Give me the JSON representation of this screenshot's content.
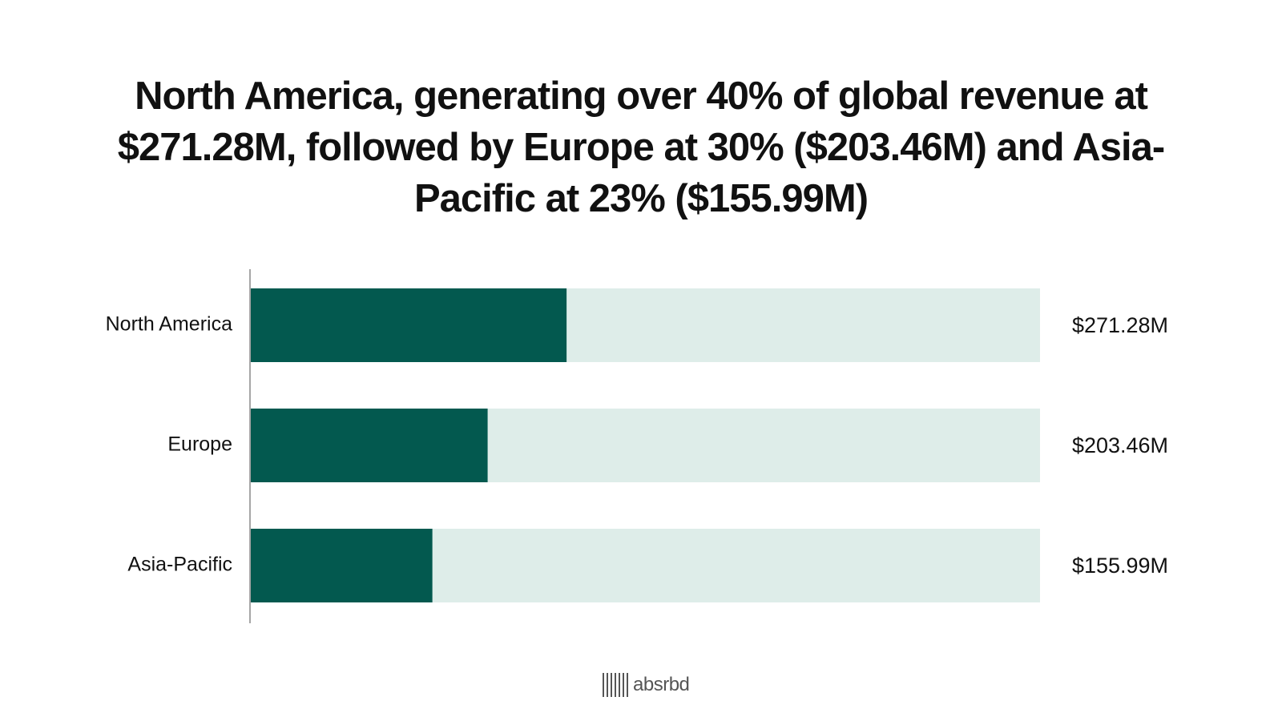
{
  "title": "North America, generating over 40% of global revenue at $271.28M, followed by Europe at 30% ($203.46M) and Asia-Pacific at 23% ($155.99M)",
  "brand": {
    "name": "absrbd"
  },
  "colors": {
    "bar": "#03594f",
    "track": "#deede9",
    "axis": "#888888"
  },
  "chart_data": {
    "type": "bar",
    "orientation": "horizontal",
    "categories": [
      "North America",
      "Europe",
      "Asia-Pacific"
    ],
    "values": [
      271.28,
      203.46,
      155.99
    ],
    "value_labels": [
      "$271.28M",
      "$203.46M",
      "$155.99M"
    ],
    "xlim": [
      0,
      678
    ],
    "grid": false,
    "legend": "none"
  }
}
